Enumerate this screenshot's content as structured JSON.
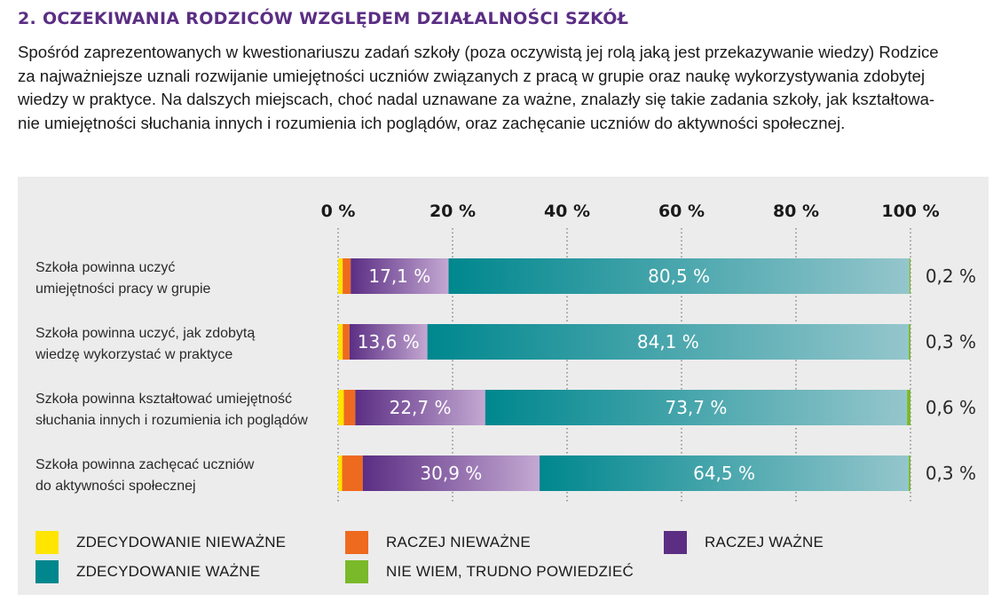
{
  "heading": "2. OCZEKIWANIA RODZICÓW WZGLĘDEM DZIAŁALNOŚCI SZKÓŁ",
  "intro_lines": [
    "Spośród zaprezentowanych w kwestionariuszu zadań szkoły (poza oczywistą jej rolą jaką jest przekazywanie wiedzy) Rodzice",
    "za najważniejsze uznali rozwijanie umiejętności uczniów związanych z pracą w grupie oraz naukę wykorzystywania zdobytej",
    "wiedzy w praktyce. Na dalszych miejscach, choć nadal uznawane za ważne, znalazły się takie zadania szkoły, jak kształtowa-",
    "nie umiejętności słuchania innych i rozumienia ich poglądów, oraz zachęcanie uczniów do aktywności społecznej."
  ],
  "chart_data": {
    "type": "bar",
    "orientation": "horizontal",
    "stacked": true,
    "xlim": [
      0,
      100
    ],
    "x_ticks": [
      "0 %",
      "20 %",
      "40 %",
      "60 %",
      "80 %",
      "100 %"
    ],
    "grid": true,
    "legend_placement": "bottom",
    "categories": [
      [
        "Szkoła powinna uczyć",
        "umiejętności pracy w grupie"
      ],
      [
        "Szkoła powinna uczyć, jak zdobytą",
        "wiedzę wykorzystać w praktyce"
      ],
      [
        "Szkoła powinna kształtować umiejętność",
        "słuchania innych i rozumienia ich poglądów"
      ],
      [
        "Szkoła powinna zachęcać uczniów",
        "do aktywności społecznej"
      ]
    ],
    "series": [
      {
        "name": "ZDECYDOWANIE NIEWAŻNE",
        "color": "#ffe500",
        "values": [
          0.8,
          0.8,
          1.0,
          0.7
        ],
        "labels": [
          "",
          "",
          "",
          ""
        ]
      },
      {
        "name": "RACZEJ NIEWAŻNE",
        "color": "#ee6a1f",
        "values": [
          1.4,
          1.2,
          2.0,
          3.6
        ],
        "labels": [
          "",
          "",
          "",
          ""
        ]
      },
      {
        "name": "RACZEJ WAŻNE",
        "color": "#5b2e84",
        "color_end": "#c4a8d2",
        "values": [
          17.1,
          13.6,
          22.7,
          30.9
        ],
        "labels": [
          "17,1 %",
          "13,6 %",
          "22,7 %",
          "30,9 %"
        ]
      },
      {
        "name": "ZDECYDOWANIE WAŻNE",
        "color": "#00878e",
        "color_end": "#94c6cc",
        "values": [
          80.5,
          84.1,
          73.7,
          64.5
        ],
        "labels": [
          "80,5 %",
          "84,1 %",
          "73,7 %",
          "64,5 %"
        ]
      },
      {
        "name": "NIE WIEM, TRUDNO POWIEDZIEĆ",
        "color": "#7ab929",
        "values": [
          0.2,
          0.3,
          0.6,
          0.3
        ],
        "labels": [
          "0,2 %",
          "0,3 %",
          "0,6 %",
          "0,3 %"
        ]
      }
    ]
  },
  "legend": [
    {
      "label": "ZDECYDOWANIE NIEWAŻNE",
      "color": "#ffe500"
    },
    {
      "label": "RACZEJ NIEWAŻNE",
      "color": "#ee6a1f"
    },
    {
      "label": "RACZEJ WAŻNE",
      "color": "#5b2e84"
    },
    {
      "label": "ZDECYDOWANIE WAŻNE",
      "color": "#00878e"
    },
    {
      "label": "NIE WIEM, TRUDNO POWIEDZIEĆ",
      "color": "#7ab929"
    }
  ]
}
